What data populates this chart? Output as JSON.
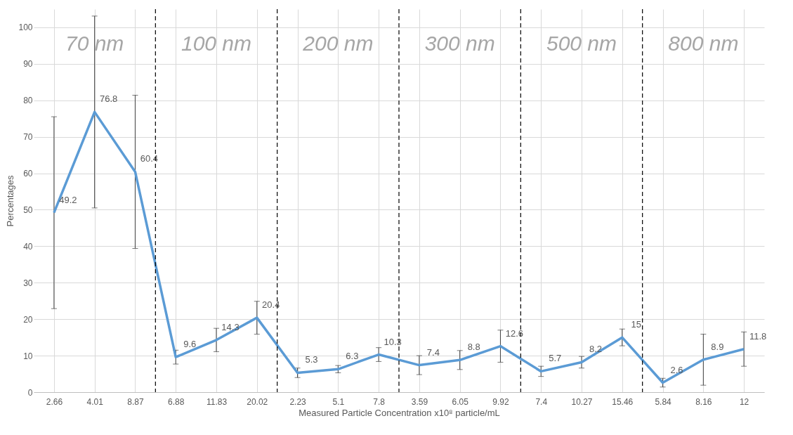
{
  "chart_data": {
    "type": "line",
    "xlabel": "Measured Particle Concentration x10⁸ particle/mL",
    "ylabel": "Percentages",
    "categories": [
      "2.66",
      "4.01",
      "8.87",
      "6.88",
      "11.83",
      "20.02",
      "2.23",
      "5.1",
      "7.8",
      "3.59",
      "6.05",
      "9.92",
      "7.4",
      "10.27",
      "15.46",
      "5.84",
      "8.16",
      "12"
    ],
    "series": [
      {
        "color": "#5b9bd5",
        "values": [
          49.2,
          76.8,
          60.4,
          9.6,
          14.3,
          20.4,
          5.3,
          6.3,
          10.3,
          7.4,
          8.8,
          12.6,
          5.7,
          8.2,
          15,
          2.6,
          8.9,
          11.8
        ],
        "errors": [
          26.3,
          26.3,
          21,
          1.9,
          3.2,
          4.5,
          1.3,
          1,
          1.9,
          2.6,
          2.6,
          4.4,
          1.4,
          1.6,
          2.3,
          1.2,
          7,
          4.7
        ]
      }
    ],
    "data_labels": true,
    "ylim": [
      0,
      105
    ],
    "yticks": [
      0,
      10,
      20,
      30,
      40,
      50,
      60,
      70,
      80,
      90,
      100
    ],
    "grid": true,
    "marker": "none",
    "line_style": "solid",
    "annotations": [
      "70 nm",
      "100 nm",
      "200 nm",
      "300 nm",
      "500 nm",
      "800 nm"
    ]
  }
}
